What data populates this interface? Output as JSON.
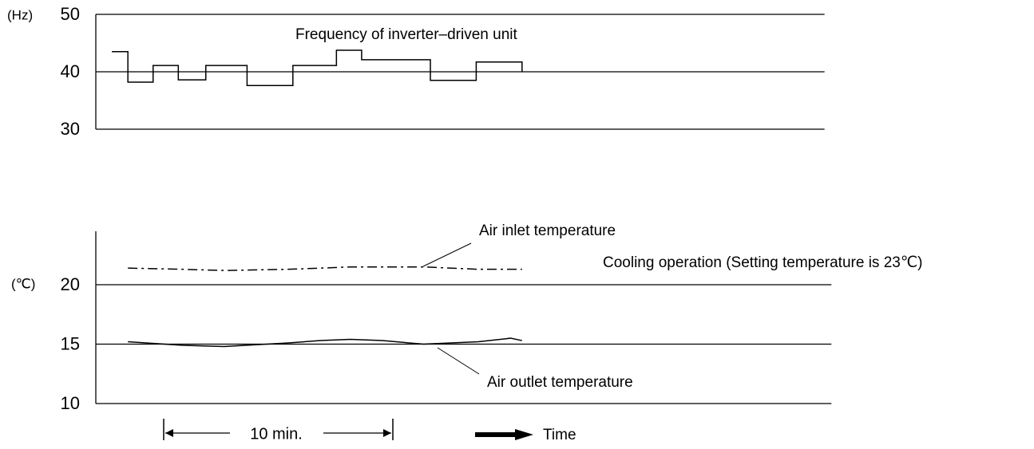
{
  "chart_data": [
    {
      "type": "line",
      "step": "post",
      "y_unit": "(Hz)",
      "series": [
        {
          "name": "Frequency of inverter–driven unit",
          "color": "#000000",
          "linestyle": "solid",
          "x": [
            0.7,
            1.4,
            2.5,
            3.6,
            4.8,
            6.6,
            8.6,
            10.5,
            11.6,
            14.6,
            16.6,
            18.6
          ],
          "values": [
            43.5,
            38.2,
            41.1,
            38.6,
            41.1,
            37.6,
            41.1,
            43.75,
            42.1,
            38.5,
            41.7,
            40
          ]
        }
      ],
      "xlim": [
        0,
        31.8
      ],
      "ylim": [
        30,
        50
      ],
      "yticks": [
        30,
        40,
        50
      ],
      "grid": true
    },
    {
      "type": "line",
      "y_unit": "(℃)",
      "x": [
        1.4,
        3.8,
        5.6,
        8.4,
        9.8,
        11.1,
        12.5,
        14.3,
        16.7,
        18.1,
        18.6
      ],
      "series": [
        {
          "name": "Air inlet temperature",
          "color": "#000000",
          "linestyle": "dashed",
          "values": [
            21.4,
            21.3,
            21.2,
            21.3,
            21.4,
            21.5,
            21.5,
            21.5,
            21.3,
            21.3,
            21.3
          ]
        },
        {
          "name": "Air outlet temperature",
          "color": "#000000",
          "linestyle": "solid",
          "values": [
            15.2,
            14.9,
            14.8,
            15.1,
            15.3,
            15.4,
            15.3,
            15.0,
            15.2,
            15.5,
            15.3
          ]
        }
      ],
      "annotation": "Cooling operation  (Setting temperature is 23℃)",
      "xlim": [
        0,
        32.1
      ],
      "ylim": [
        10,
        24.5
      ],
      "yticks": [
        10,
        15,
        20
      ],
      "grid": true
    }
  ],
  "interval_label": "10 min.",
  "x_label": "Time"
}
